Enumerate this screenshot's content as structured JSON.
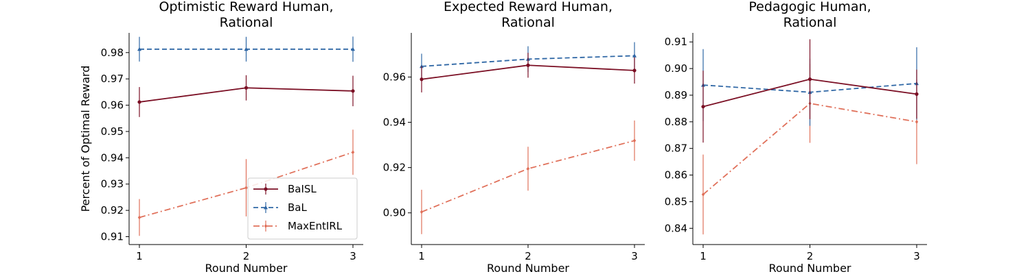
{
  "figure": {
    "ylabel": "Percent of Optimal Reward",
    "xlabel": "Round Number"
  },
  "legend": {
    "placement": "lower-right of first panel",
    "entries": [
      {
        "label": "BaISL",
        "color": "#7b0f24",
        "dash": "solid",
        "marker": "circle"
      },
      {
        "label": "BaL",
        "color": "#2f67a5",
        "dash": "dashed",
        "marker": "triangle"
      },
      {
        "label": "MaxEntIRL",
        "color": "#e0705a",
        "dash": "dashdot",
        "marker": "diamond"
      }
    ]
  },
  "chart_data": [
    {
      "type": "line",
      "title": [
        "Optimistic Reward Human,",
        "Rational"
      ],
      "xlabel": "Round Number",
      "ylabel": "Percent of Optimal Reward",
      "x": [
        1,
        2,
        3
      ],
      "xticks": [
        "1",
        "2",
        "3"
      ],
      "ylim": [
        0.907,
        0.9875
      ],
      "yticks": [
        0.91,
        0.92,
        0.93,
        0.94,
        0.95,
        0.96,
        0.97,
        0.98
      ],
      "ytick_labels": [
        "0.91",
        "0.92",
        "0.93",
        "0.94",
        "0.95",
        "0.96",
        "0.97",
        "0.98"
      ],
      "grid": false,
      "series": [
        {
          "name": "BaISL",
          "values": [
            0.9612,
            0.9666,
            0.9654
          ],
          "errors": [
            0.0057,
            0.0048,
            0.0058
          ]
        },
        {
          "name": "BaL",
          "values": [
            0.9813,
            0.9813,
            0.9813
          ],
          "errors": [
            0.0047,
            0.0047,
            0.0048
          ]
        },
        {
          "name": "MaxEntIRL",
          "values": [
            0.9173,
            0.9286,
            0.9421
          ],
          "errors": [
            0.007,
            0.0109,
            0.0086
          ]
        }
      ]
    },
    {
      "type": "line",
      "title": [
        "Expected Reward Human,",
        "Rational"
      ],
      "xlabel": "Round Number",
      "ylabel": "",
      "x": [
        1,
        2,
        3
      ],
      "xticks": [
        "1",
        "2",
        "3"
      ],
      "ylim": [
        0.886,
        0.9795
      ],
      "yticks": [
        0.9,
        0.92,
        0.94,
        0.96
      ],
      "ytick_labels": [
        "0.90",
        "0.92",
        "0.94",
        "0.96"
      ],
      "grid": false,
      "series": [
        {
          "name": "BaISL",
          "values": [
            0.959,
            0.9652,
            0.9629
          ],
          "errors": [
            0.0058,
            0.0055,
            0.0058
          ]
        },
        {
          "name": "BaL",
          "values": [
            0.9647,
            0.9679,
            0.9694
          ],
          "errors": [
            0.0056,
            0.0057,
            0.006
          ]
        },
        {
          "name": "MaxEntIRL",
          "values": [
            0.9004,
            0.9195,
            0.9319
          ],
          "errors": [
            0.0098,
            0.0097,
            0.0089
          ]
        }
      ]
    },
    {
      "type": "line",
      "title": [
        "Pedagogic Human,",
        "Rational"
      ],
      "xlabel": "Round Number",
      "ylabel": "",
      "x": [
        1,
        2,
        3
      ],
      "xticks": [
        "1",
        "2",
        "3"
      ],
      "ylim": [
        0.8339,
        0.9134
      ],
      "yticks": [
        0.84,
        0.85,
        0.86,
        0.87,
        0.88,
        0.89,
        0.9,
        0.91
      ],
      "ytick_labels": [
        "0.84",
        "0.85",
        "0.86",
        "0.87",
        "0.88",
        "0.89",
        "0.90",
        "0.91"
      ],
      "grid": false,
      "series": [
        {
          "name": "BaISL",
          "values": [
            0.8857,
            0.896,
            0.8904
          ],
          "errors": [
            0.0135,
            0.015,
            0.0092
          ]
        },
        {
          "name": "BaL",
          "values": [
            0.8938,
            0.8911,
            0.8944
          ],
          "errors": [
            0.0135,
            0.0126,
            0.0136
          ]
        },
        {
          "name": "MaxEntIRL",
          "values": [
            0.8527,
            0.8869,
            0.88
          ],
          "errors": [
            0.015,
            0.0148,
            0.0159
          ]
        }
      ]
    }
  ]
}
